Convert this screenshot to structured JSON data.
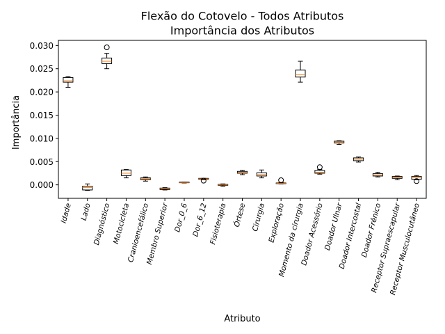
{
  "chart_data": {
    "type": "boxplot",
    "title": "Flexão do Cotovelo - Todos Atributos",
    "subtitle": "Importância dos Atributos",
    "xlabel": "Atributo",
    "ylabel": "Importância",
    "ylim": [
      -0.0029,
      0.0311
    ],
    "yticks": [
      "0.000",
      "0.005",
      "0.010",
      "0.015",
      "0.020",
      "0.025",
      "0.030"
    ],
    "ytick_values": [
      0.0,
      0.005,
      0.01,
      0.015,
      0.02,
      0.025,
      0.03
    ],
    "grid": false,
    "colors": {
      "median": "#ff7f0e",
      "box": "#000000"
    },
    "categories": [
      "Idade",
      "Lado",
      "Diagnóstico",
      "Motocicleta",
      "Cranioencefálico",
      "Membro Superior",
      "Dor_0_6",
      "Dor_6_12",
      "Fisioterapia",
      "Órtese",
      "Cirurgia",
      "Exploração",
      "Momento da cirurgia",
      "Doador Acessório",
      "Doador Ulnar",
      "Doador Intercostal",
      "Doador Frênico",
      "Receptor Supraescapular",
      "Receptor Musculocutâneo"
    ],
    "series": [
      {
        "name": "Idade",
        "whisker_low": 0.021,
        "q1": 0.0221,
        "median": 0.0224,
        "q3": 0.0231,
        "whisker_high": 0.0233,
        "outliers": []
      },
      {
        "name": "Lado",
        "whisker_low": -0.0012,
        "q1": -0.0011,
        "median": -0.0006,
        "q3": -0.0003,
        "whisker_high": 0.0002,
        "outliers": []
      },
      {
        "name": "Diagnóstico",
        "whisker_low": 0.025,
        "q1": 0.0261,
        "median": 0.0266,
        "q3": 0.0273,
        "whisker_high": 0.0283,
        "outliers": [
          0.0296
        ]
      },
      {
        "name": "Motocicleta",
        "whisker_low": 0.0015,
        "q1": 0.002,
        "median": 0.0025,
        "q3": 0.0032,
        "whisker_high": 0.0033,
        "outliers": []
      },
      {
        "name": "Cranioencefálico",
        "whisker_low": 0.0008,
        "q1": 0.0011,
        "median": 0.0013,
        "q3": 0.0015,
        "whisker_high": 0.0017,
        "outliers": []
      },
      {
        "name": "Membro Superior",
        "whisker_low": -0.0011,
        "q1": -0.001,
        "median": -0.0008,
        "q3": -0.0007,
        "whisker_high": -0.0006,
        "outliers": []
      },
      {
        "name": "Dor_0_6",
        "whisker_low": 0.0004,
        "q1": 0.0005,
        "median": 0.0005,
        "q3": 0.0006,
        "whisker_high": 0.0006,
        "outliers": []
      },
      {
        "name": "Dor_6_12",
        "whisker_low": 0.0011,
        "q1": 0.0012,
        "median": 0.0013,
        "q3": 0.0014,
        "whisker_high": 0.0014,
        "outliers": [
          0.0009
        ]
      },
      {
        "name": "Fisioterapia",
        "whisker_low": -0.0003,
        "q1": -0.0001,
        "median": 0.0,
        "q3": 0.0001,
        "whisker_high": 0.0002,
        "outliers": []
      },
      {
        "name": "Órtese",
        "whisker_low": 0.0022,
        "q1": 0.0025,
        "median": 0.0027,
        "q3": 0.0029,
        "whisker_high": 0.0031,
        "outliers": []
      },
      {
        "name": "Cirurgia",
        "whisker_low": 0.0015,
        "q1": 0.0019,
        "median": 0.0022,
        "q3": 0.0026,
        "whisker_high": 0.0032,
        "outliers": []
      },
      {
        "name": "Exploração",
        "whisker_low": 0.0002,
        "q1": 0.0003,
        "median": 0.0003,
        "q3": 0.0004,
        "whisker_high": 0.0005,
        "outliers": [
          0.001
        ]
      },
      {
        "name": "Momento da cirurgia",
        "whisker_low": 0.0221,
        "q1": 0.0232,
        "median": 0.0237,
        "q3": 0.0247,
        "whisker_high": 0.0266,
        "outliers": []
      },
      {
        "name": "Doador Acessório",
        "whisker_low": 0.0023,
        "q1": 0.0025,
        "median": 0.0027,
        "q3": 0.0031,
        "whisker_high": 0.0033,
        "outliers": [
          0.0038
        ]
      },
      {
        "name": "Doador Ulnar",
        "whisker_low": 0.0087,
        "q1": 0.009,
        "median": 0.0092,
        "q3": 0.0094,
        "whisker_high": 0.0095,
        "outliers": []
      },
      {
        "name": "Doador Intercostal",
        "whisker_low": 0.0049,
        "q1": 0.0052,
        "median": 0.0055,
        "q3": 0.0058,
        "whisker_high": 0.006,
        "outliers": []
      },
      {
        "name": "Doador Frênico",
        "whisker_low": 0.0017,
        "q1": 0.0019,
        "median": 0.0021,
        "q3": 0.0024,
        "whisker_high": 0.0027,
        "outliers": []
      },
      {
        "name": "Receptor Supraescapular",
        "whisker_low": 0.0011,
        "q1": 0.0014,
        "median": 0.0016,
        "q3": 0.0018,
        "whisker_high": 0.0019,
        "outliers": []
      },
      {
        "name": "Receptor Musculocutâneo",
        "whisker_low": 0.0011,
        "q1": 0.0012,
        "median": 0.0015,
        "q3": 0.0018,
        "whisker_high": 0.002,
        "outliers": [
          0.0008
        ]
      }
    ]
  }
}
